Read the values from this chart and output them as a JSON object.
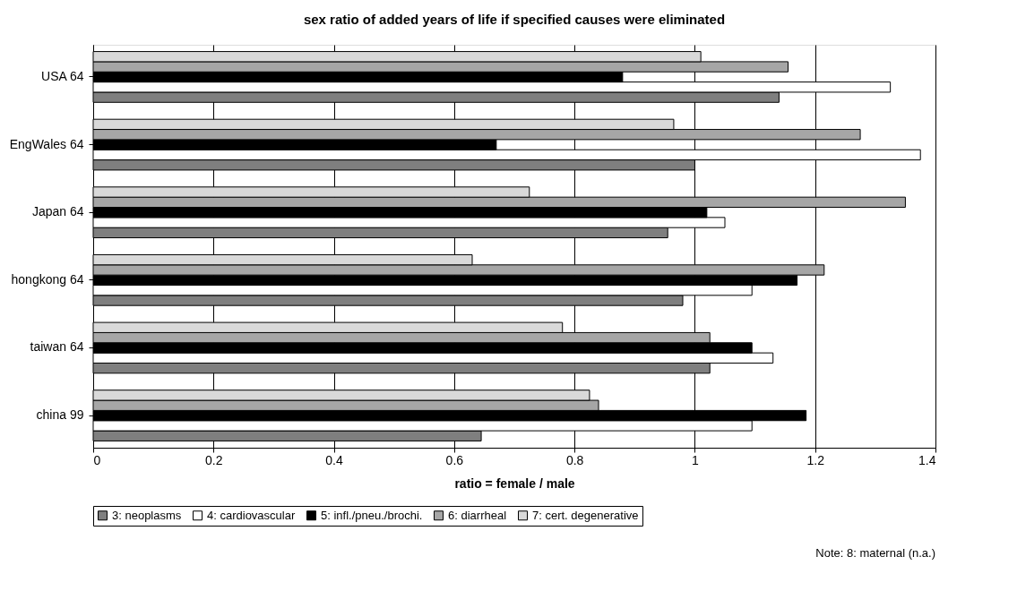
{
  "chart_data": {
    "type": "bar",
    "orientation": "horizontal",
    "title": "sex ratio of added years of life if specified causes were eliminated",
    "xlabel": "ratio = female / male",
    "categories": [
      "USA 64",
      "EngWales 64",
      "Japan 64",
      "hongkong 64",
      "taiwan 64",
      "china 99"
    ],
    "series": [
      {
        "name": "3: neoplasms",
        "color": "#7f7f7f",
        "values": [
          1.14,
          1.0,
          0.955,
          0.98,
          1.025,
          0.645
        ]
      },
      {
        "name": "4: cardiovascular",
        "color": "#ffffff",
        "values": [
          1.325,
          1.375,
          1.05,
          1.095,
          1.13,
          1.095
        ]
      },
      {
        "name": "5: infl./pneu./brochi.",
        "color": "#000000",
        "values": [
          0.88,
          0.67,
          1.02,
          1.17,
          1.095,
          1.185
        ]
      },
      {
        "name": "6: diarrheal",
        "color": "#a6a6a6",
        "values": [
          1.155,
          1.275,
          1.35,
          1.215,
          1.025,
          0.84
        ]
      },
      {
        "name": "7: cert. degenerative",
        "color": "#d9d9d9",
        "values": [
          1.01,
          0.965,
          0.725,
          0.63,
          0.78,
          0.825
        ]
      }
    ],
    "xlim": [
      0,
      1.4
    ],
    "xticks": [
      0,
      0.2,
      0.4,
      0.6,
      0.8,
      1,
      1.2,
      1.4
    ],
    "grid": "x",
    "legend": "bottom",
    "annotations": [
      "Note: 8: maternal (n.a.)"
    ]
  }
}
